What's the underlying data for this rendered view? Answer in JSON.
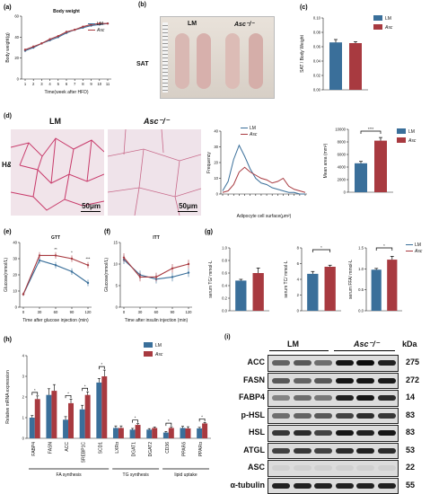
{
  "colors": {
    "lm": "#3a6f9a",
    "asc": "#a83a40"
  },
  "panels": {
    "a": "(a)",
    "b": "(b)",
    "c": "(c)",
    "d": "(d)",
    "e": "(e)",
    "f": "(f)",
    "g": "(g)",
    "h": "(h)",
    "i": "(i)"
  },
  "legend": {
    "lm": "LM",
    "asc": "Asc"
  },
  "photo_b": {
    "row_label": "SAT",
    "col_lm": "LM",
    "col_asc": "Asc⁻/⁻"
  },
  "photo_d": {
    "row_label": "H&E",
    "col_lm": "LM",
    "col_asc": "Asc⁻/⁻",
    "scale_lm": "50μm",
    "scale_asc": "50μm"
  },
  "stars": {
    "d_mean_area": "****",
    "g_tc": "*",
    "g_ffa": "*",
    "e_60": "**",
    "e_90": "*",
    "e_120": "***"
  },
  "westernBlot": {
    "group_lm": "LM",
    "group_asc": "Asc⁻/⁻",
    "kda_header": "kDa",
    "proteins": [
      {
        "name": "ACC",
        "kda": "275"
      },
      {
        "name": "FASN",
        "kda": "272"
      },
      {
        "name": "FABP4",
        "kda": "14"
      },
      {
        "name": "p-HSL",
        "kda": "83"
      },
      {
        "name": "HSL",
        "kda": "83"
      },
      {
        "name": "ATGL",
        "kda": "53"
      },
      {
        "name": "ASC",
        "kda": "22"
      },
      {
        "name": "α-tubulin",
        "kda": "55"
      }
    ]
  },
  "chart_data": [
    {
      "id": "a",
      "type": "line",
      "title": "Body weight",
      "xlabel": "Time(week after HFD)",
      "ylabel": "Body weight(g)",
      "x": [
        "1",
        "2",
        "3",
        "4",
        "5",
        "6",
        "7",
        "8",
        "9",
        "10",
        "11"
      ],
      "ylim": [
        0,
        60
      ],
      "yticks": [
        "0",
        "20",
        "40",
        "60"
      ],
      "series": [
        {
          "name": "LM",
          "values": [
            27,
            30,
            34,
            37,
            40,
            44,
            47,
            49,
            51,
            52,
            53
          ]
        },
        {
          "name": "Asc",
          "values": [
            28,
            31,
            34,
            38,
            41,
            45,
            47,
            50,
            52,
            53,
            53
          ]
        }
      ]
    },
    {
      "id": "c",
      "type": "bar",
      "title": "",
      "ylabel": "SAT / Body Weight",
      "ylim": [
        0,
        0.1
      ],
      "yticks": [
        "0.00",
        "0.02",
        "0.04",
        "0.06",
        "0.08",
        "0.10"
      ],
      "series": [
        {
          "name": "LM",
          "values": [
            0.066
          ],
          "err": [
            0.004
          ]
        },
        {
          "name": "Asc",
          "values": [
            0.065
          ],
          "err": [
            0.002
          ]
        }
      ]
    },
    {
      "id": "d-freq",
      "type": "line",
      "title": "",
      "xlabel": "Adipocyte cell surface(μm²)",
      "ylabel": "Frequency",
      "ylim": [
        0,
        40
      ],
      "yticks": [
        "0",
        "10",
        "20",
        "30",
        "40"
      ],
      "series": [
        {
          "name": "LM",
          "values": [
            2,
            8,
            22,
            31,
            24,
            16,
            10,
            7,
            6,
            4,
            3,
            2,
            1,
            1,
            0,
            0
          ]
        },
        {
          "name": "Asc",
          "values": [
            1,
            2,
            6,
            14,
            17,
            14,
            12,
            10,
            9,
            7,
            8,
            10,
            5,
            3,
            2,
            1
          ]
        }
      ]
    },
    {
      "id": "d-area",
      "type": "bar",
      "title": "",
      "ylabel": "Mean area (mm²)",
      "ylim": [
        0,
        10000
      ],
      "yticks": [
        "0",
        "2000",
        "4000",
        "6000",
        "8000",
        "10000"
      ],
      "series": [
        {
          "name": "LM",
          "values": [
            4600
          ],
          "err": [
            300
          ]
        },
        {
          "name": "Asc",
          "values": [
            8200
          ],
          "err": [
            500
          ]
        }
      ]
    },
    {
      "id": "e",
      "type": "line",
      "title": "GTT",
      "xlabel": "Time after glucose injection (min)",
      "ylabel": "Glucose(mmol/L)",
      "x": [
        "0",
        "30",
        "60",
        "90",
        "120"
      ],
      "ylim": [
        0,
        40
      ],
      "yticks": [
        "0",
        "10",
        "20",
        "30",
        "40"
      ],
      "series": [
        {
          "name": "LM",
          "values": [
            8,
            29,
            26,
            22,
            15
          ],
          "err": [
            1,
            2,
            2,
            2,
            2
          ]
        },
        {
          "name": "Asc",
          "values": [
            8,
            32,
            32,
            30,
            26
          ],
          "err": [
            1,
            2,
            2,
            2,
            2
          ]
        }
      ]
    },
    {
      "id": "f",
      "type": "line",
      "title": "ITT",
      "xlabel": "Time after insulin injection (min)",
      "ylabel": "Glucose(mmol/L)",
      "x": [
        "0",
        "30",
        "60",
        "90",
        "120"
      ],
      "ylim": [
        0,
        15
      ],
      "yticks": [
        "0",
        "5",
        "10",
        "15"
      ],
      "series": [
        {
          "name": "LM",
          "values": [
            11,
            7.5,
            6.5,
            7,
            8
          ],
          "err": [
            1,
            1,
            1,
            1,
            1
          ]
        },
        {
          "name": "Asc",
          "values": [
            11.5,
            7,
            7,
            9,
            10
          ],
          "err": [
            1,
            1,
            1,
            1,
            1
          ]
        }
      ]
    },
    {
      "id": "g-tg",
      "type": "bar",
      "ylabel": "serum TG/ mmol·L",
      "ylim": [
        0,
        1.0
      ],
      "yticks": [
        "0.0",
        "0.2",
        "0.4",
        "0.6",
        "0.8",
        "1.0"
      ],
      "series": [
        {
          "name": "LM",
          "values": [
            0.48
          ],
          "err": [
            0.02
          ]
        },
        {
          "name": "Asc",
          "values": [
            0.6
          ],
          "err": [
            0.08
          ]
        }
      ]
    },
    {
      "id": "g-tc",
      "type": "bar",
      "ylabel": "serum TC/ mmol·L",
      "ylim": [
        0,
        8
      ],
      "yticks": [
        "0",
        "2",
        "4",
        "6",
        "8"
      ],
      "series": [
        {
          "name": "LM",
          "values": [
            4.7
          ],
          "err": [
            0.3
          ]
        },
        {
          "name": "Asc",
          "values": [
            5.6
          ],
          "err": [
            0.2
          ]
        }
      ]
    },
    {
      "id": "g-ffa",
      "type": "bar",
      "ylabel": "serum FFA/ mmol·L",
      "ylim": [
        0,
        1.5
      ],
      "yticks": [
        "0.0",
        "0.5",
        "1.0",
        "1.5"
      ],
      "series": [
        {
          "name": "LM",
          "values": [
            0.98
          ],
          "err": [
            0.03
          ]
        },
        {
          "name": "Asc",
          "values": [
            1.22
          ],
          "err": [
            0.08
          ]
        }
      ]
    },
    {
      "id": "h",
      "type": "bar",
      "title": "",
      "ylabel": "Relative mRNA expression",
      "categories": [
        "FABP4",
        "FASN",
        "ACC",
        "SREBP1C",
        "SCD1",
        "LXRα",
        "DGAT1",
        "DGAT2",
        "CD36",
        "PPARδ",
        "PPARα"
      ],
      "ylim": [
        0,
        4
      ],
      "yticks": [
        "0",
        "1",
        "2",
        "3",
        "4"
      ],
      "groups": [
        {
          "label": "FA synthesis",
          "from": 0,
          "to": 4
        },
        {
          "label": "TG synthesis",
          "from": 5,
          "to": 7
        },
        {
          "label": "lipid uptake",
          "from": 8,
          "to": 10
        }
      ],
      "series": [
        {
          "name": "LM",
          "values": [
            1.0,
            2.1,
            0.9,
            1.4,
            2.7,
            0.5,
            0.42,
            0.42,
            0.28,
            0.5,
            0.48
          ],
          "err": [
            0.1,
            0.3,
            0.15,
            0.2,
            0.2,
            0.1,
            0.06,
            0.05,
            0.05,
            0.08,
            0.05
          ]
        },
        {
          "name": "Asc",
          "values": [
            1.9,
            2.3,
            1.7,
            2.1,
            3.0,
            0.5,
            0.65,
            0.5,
            0.5,
            0.48,
            0.72
          ],
          "err": [
            0.15,
            0.3,
            0.2,
            0.15,
            0.3,
            0.1,
            0.06,
            0.05,
            0.06,
            0.08,
            0.05
          ]
        }
      ],
      "stars": [
        0,
        2,
        3,
        4,
        6,
        8,
        10
      ]
    }
  ]
}
